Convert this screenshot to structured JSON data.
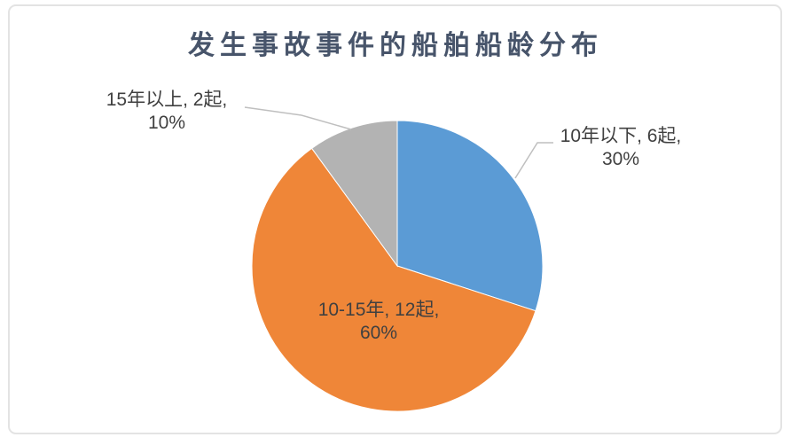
{
  "chart_data": {
    "type": "pie",
    "title": "发生事故事件的船舶船龄分布",
    "legend": "none",
    "direction": "clockwise",
    "start_angle_deg": 0,
    "unit": "起",
    "total_count": 20,
    "categories": [
      "10年以下",
      "10-15年",
      "15年以上"
    ],
    "values": [
      6,
      12,
      2
    ],
    "percentages": [
      30,
      60,
      10
    ],
    "colors": [
      "#5b9bd5",
      "#ef8638",
      "#b3b3b3"
    ],
    "slices": [
      {
        "category": "10年以下",
        "count": 6,
        "percent": 30,
        "color": "#5b9bd5",
        "label_line1": "10年以下, 6起,",
        "label_line2": "30%",
        "label_placement": "outside-right"
      },
      {
        "category": "10-15年",
        "count": 12,
        "percent": 60,
        "color": "#ef8638",
        "label_line1": "10-15年, 12起,",
        "label_line2": "60%",
        "label_placement": "inside"
      },
      {
        "category": "15年以上",
        "count": 2,
        "percent": 10,
        "color": "#b3b3b3",
        "label_line1": "15年以上, 2起,",
        "label_line2": "10%",
        "label_placement": "outside-left"
      }
    ],
    "style": {
      "title_color": "#47546a",
      "label_color": "#404040",
      "leader_line_color": "#bfbfbf",
      "slice_stroke_color": "#ffffff",
      "frame_border_color": "#e3e3e3",
      "background_color": "#ffffff"
    }
  }
}
